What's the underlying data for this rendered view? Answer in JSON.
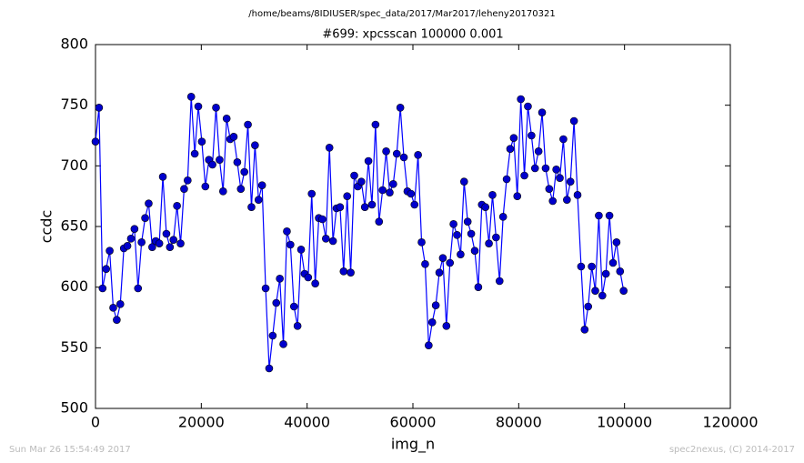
{
  "chart_data": {
    "type": "line",
    "suptitle": "/home/beams/8IDIUSER/spec_data/2017/Mar2017/leheny20170321",
    "title": "#699: xpcsscan 100000 0.001",
    "xlabel": "img_n",
    "ylabel": "ccdc",
    "footer_left": "Sun Mar 26 15:54:49 2017",
    "footer_right": "spec2nexus, (C) 2014-2017",
    "color": "#0000ff",
    "marker_color": "#0000cc",
    "xlim": [
      0,
      120000
    ],
    "xticks": [
      0,
      20000,
      40000,
      60000,
      80000,
      100000,
      120000
    ],
    "ylim": [
      500,
      800
    ],
    "yticks": [
      500,
      550,
      600,
      650,
      700,
      750,
      800
    ],
    "x": [
      0,
      670,
      1340,
      2010,
      2680,
      3350,
      4020,
      4690,
      5360,
      6030,
      6700,
      7370,
      8040,
      8710,
      9380,
      10050,
      10720,
      11390,
      12060,
      12730,
      13400,
      14070,
      14740,
      15410,
      16080,
      16750,
      17420,
      18090,
      18760,
      19430,
      20100,
      20770,
      21440,
      22110,
      22780,
      23450,
      24120,
      24790,
      25460,
      26130,
      26800,
      27470,
      28140,
      28810,
      29480,
      30150,
      30820,
      31490,
      32160,
      32830,
      33500,
      34170,
      34840,
      35510,
      36180,
      36850,
      37520,
      38190,
      38860,
      39530,
      40200,
      40870,
      41540,
      42210,
      42880,
      43550,
      44220,
      44890,
      45560,
      46230,
      46900,
      47570,
      48240,
      48910,
      49580,
      50250,
      50920,
      51590,
      52260,
      52930,
      53600,
      54270,
      54940,
      55610,
      56280,
      56950,
      57620,
      58290,
      58960,
      59630,
      60300,
      60970,
      61640,
      62310,
      62980,
      63650,
      64320,
      64990,
      65660,
      66330,
      67000,
      67670,
      68340,
      69010,
      69680,
      70350,
      71020,
      71690,
      72360,
      73030,
      73700,
      74370,
      75040,
      75710,
      76380,
      77050,
      77720,
      78390,
      79060,
      79730,
      80400,
      81070,
      81740,
      82410,
      83080,
      83750,
      84420,
      85090,
      85760,
      86430,
      87100,
      87770,
      88440,
      89110,
      89780,
      90450,
      91120,
      91790,
      92460,
      93130,
      93800,
      94470,
      95140,
      95810,
      96480,
      97150,
      97820,
      98490,
      99160,
      99830
    ],
    "values": [
      720,
      748,
      599,
      615,
      630,
      583,
      573,
      586,
      632,
      634,
      640,
      648,
      599,
      637,
      657,
      669,
      633,
      638,
      636,
      691,
      644,
      633,
      639,
      667,
      636,
      681,
      688,
      757,
      710,
      749,
      720,
      683,
      705,
      701,
      748,
      705,
      679,
      739,
      722,
      724,
      703,
      681,
      695,
      734,
      666,
      717,
      672,
      684,
      599,
      533,
      560,
      587,
      607,
      553,
      646,
      635,
      584,
      568,
      631,
      611,
      608,
      677,
      603,
      657,
      656,
      640,
      715,
      638,
      665,
      666,
      613,
      675,
      612,
      692,
      683,
      687,
      666,
      704,
      668,
      734,
      654,
      680,
      712,
      678,
      685,
      710,
      748,
      707,
      679,
      677,
      668,
      709,
      637,
      619,
      552,
      571,
      585,
      612,
      624,
      568,
      620,
      652,
      643,
      627,
      687,
      654,
      644,
      630,
      600,
      668,
      666,
      636,
      676,
      641,
      605,
      658,
      689,
      714,
      723,
      675,
      755,
      692,
      749,
      725,
      698,
      712,
      744,
      698,
      681,
      671,
      697,
      690,
      722,
      672,
      687,
      737,
      676,
      617,
      565,
      584,
      617,
      597,
      659,
      593,
      611,
      659,
      620,
      637,
      613,
      597
    ]
  }
}
